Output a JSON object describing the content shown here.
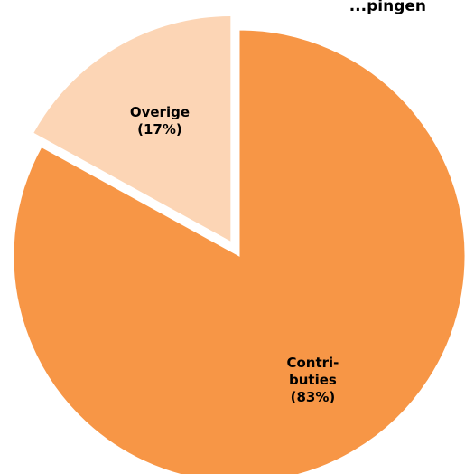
{
  "chart_data": {
    "type": "pie",
    "title_fragment": "...pingen",
    "slices": [
      {
        "category": "Contributies",
        "label_lines": [
          "Contri-",
          "buties"
        ],
        "percent_label": "(83%)",
        "value": 83,
        "color": "#F79646",
        "exploded": false
      },
      {
        "category": "Overige",
        "label_lines": [
          "Overige"
        ],
        "percent_label": "(17%)",
        "value": 17,
        "color": "#FCD5B5",
        "exploded": true
      }
    ],
    "start_angle_deg": 0,
    "direction": "clockwise",
    "legend": "none"
  }
}
